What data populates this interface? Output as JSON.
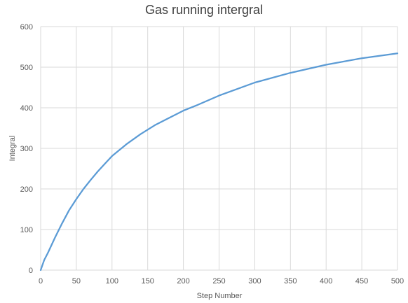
{
  "chart_data": {
    "type": "line",
    "title": "Gas running intergral",
    "xlabel": "Step Number",
    "ylabel": "Integral",
    "xlim": [
      0,
      500
    ],
    "ylim": [
      0,
      600
    ],
    "xticks": [
      0,
      50,
      100,
      150,
      200,
      250,
      300,
      350,
      400,
      450,
      500
    ],
    "yticks": [
      0,
      100,
      200,
      300,
      400,
      500,
      600
    ],
    "grid": true,
    "legend": "none",
    "series": [
      {
        "color": "#5b9bd5",
        "x": [
          0,
          5,
          10,
          20,
          30,
          40,
          50,
          60,
          70,
          80,
          90,
          100,
          120,
          140,
          160,
          180,
          200,
          220,
          250,
          300,
          350,
          400,
          450,
          500
        ],
        "y": [
          0,
          25,
          42,
          80,
          115,
          148,
          175,
          200,
          222,
          243,
          262,
          281,
          310,
          335,
          357,
          375,
          393,
          407,
          430,
          462,
          486,
          506,
          522,
          534
        ]
      }
    ]
  }
}
